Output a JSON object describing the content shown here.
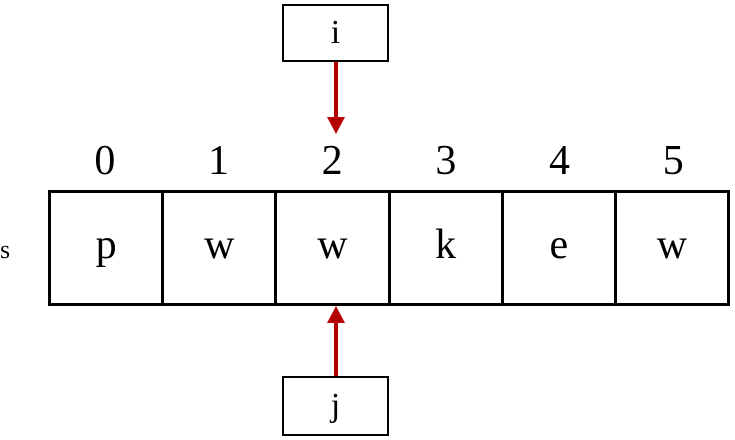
{
  "pointers": {
    "top": {
      "label": "i",
      "index": 2
    },
    "bottom": {
      "label": "j",
      "index": 2
    }
  },
  "array": {
    "name": "s",
    "indices": [
      "0",
      "1",
      "2",
      "3",
      "4",
      "5"
    ],
    "values": [
      "p",
      "w",
      "w",
      "k",
      "e",
      "w"
    ]
  },
  "colors": {
    "arrow": "#b40000",
    "border": "#000000"
  }
}
